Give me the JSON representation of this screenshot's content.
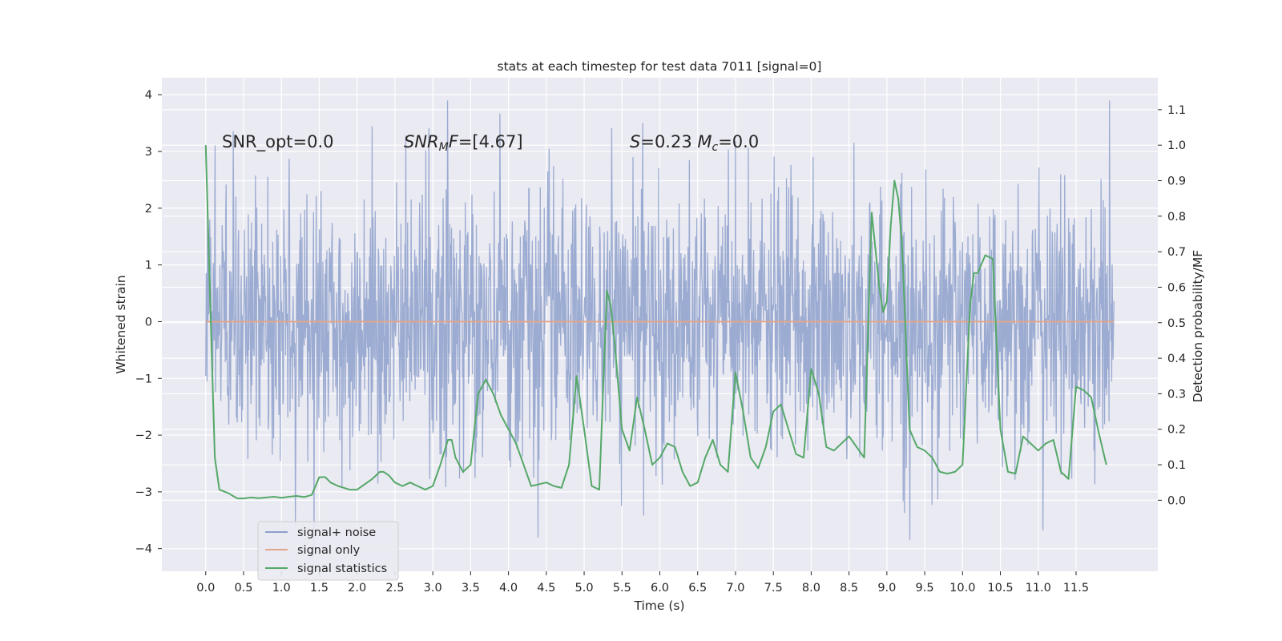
{
  "chart_data": {
    "type": "line",
    "title": "stats at each timestep for test data 7011 [signal=0]",
    "xlabel": "Time (s)",
    "ylabel": "Whitened strain",
    "y2label": "Detection probability/MF",
    "xlim": [
      -0.58,
      12.58
    ],
    "ylim": [
      -4.4,
      4.3
    ],
    "y2lim": [
      -0.2,
      1.19
    ],
    "x_ticks": [
      0.0,
      0.5,
      1.0,
      1.5,
      2.0,
      2.5,
      3.0,
      3.5,
      4.0,
      4.5,
      5.0,
      5.5,
      6.0,
      6.5,
      7.0,
      7.5,
      8.0,
      8.5,
      9.0,
      9.5,
      10.0,
      10.5,
      11.0,
      11.5
    ],
    "x_tick_labels": [
      "0.0",
      "0.5",
      "1.0",
      "1.5",
      "2.0",
      "2.5",
      "3.0",
      "3.5",
      "4.0",
      "4.5",
      "5.0",
      "5.5",
      "6.0",
      "6.5",
      "7.0",
      "7.5",
      "8.0",
      "8.5",
      "9.0",
      "9.5",
      "10.0",
      "10.5",
      "11.0",
      "11.5"
    ],
    "y_ticks": [
      -4,
      -3,
      -2,
      -1,
      0,
      1,
      2,
      3,
      4
    ],
    "y_tick_labels": [
      "−4",
      "−3",
      "−2",
      "−1",
      "0",
      "1",
      "2",
      "3",
      "4"
    ],
    "y2_ticks": [
      0.0,
      0.1,
      0.2,
      0.3,
      0.4,
      0.5,
      0.6,
      0.7,
      0.8,
      0.9,
      1.0,
      1.1
    ],
    "y2_tick_labels": [
      "0.0",
      "0.1",
      "0.2",
      "0.3",
      "0.4",
      "0.5",
      "0.6",
      "0.7",
      "0.8",
      "0.9",
      "1.0",
      "1.1"
    ],
    "grid": true,
    "legend_position": "lower-left",
    "annotations": [
      {
        "text": "SNR_opt=0.0",
        "x": 0.2,
        "y": 3.0
      },
      {
        "text": "SNR_MF=[4.67]",
        "x": 2.6,
        "y": 3.0
      },
      {
        "text": "S=0.23   M_c=0.0",
        "x": 5.6,
        "y": 3.0
      }
    ],
    "series": [
      {
        "name": "signal+ noise",
        "kind": "noise",
        "color": "#8da0cb",
        "axis": "left",
        "x_range": [
          0.0,
          12.0
        ],
        "samples": 2048,
        "typical_envelope": 1.2,
        "extreme_max": 3.9,
        "extreme_min": -4.05
      },
      {
        "name": "signal only",
        "color": "#e1a58c",
        "axis": "left",
        "x": [
          0.0,
          12.0
        ],
        "values": [
          0.0,
          0.0
        ]
      },
      {
        "name": "signal statistics",
        "color": "#55a868",
        "axis": "right",
        "x": [
          0.0,
          0.06,
          0.12,
          0.18,
          0.24,
          0.3,
          0.36,
          0.42,
          0.5,
          0.6,
          0.7,
          0.8,
          0.9,
          1.0,
          1.1,
          1.2,
          1.3,
          1.4,
          1.5,
          1.58,
          1.65,
          1.75,
          1.9,
          2.0,
          2.1,
          2.2,
          2.3,
          2.35,
          2.42,
          2.5,
          2.6,
          2.7,
          2.8,
          2.9,
          3.0,
          3.1,
          3.2,
          3.25,
          3.3,
          3.4,
          3.5,
          3.6,
          3.7,
          3.8,
          3.9,
          4.0,
          4.1,
          4.2,
          4.3,
          4.4,
          4.5,
          4.6,
          4.7,
          4.8,
          4.9,
          5.0,
          5.1,
          5.2,
          5.3,
          5.35,
          5.4,
          5.5,
          5.6,
          5.7,
          5.8,
          5.9,
          6.0,
          6.1,
          6.2,
          6.3,
          6.4,
          6.5,
          6.6,
          6.7,
          6.8,
          6.9,
          7.0,
          7.1,
          7.2,
          7.3,
          7.4,
          7.5,
          7.6,
          7.7,
          7.8,
          7.9,
          8.0,
          8.1,
          8.2,
          8.3,
          8.4,
          8.5,
          8.6,
          8.7,
          8.8,
          8.9,
          8.95,
          9.0,
          9.05,
          9.1,
          9.15,
          9.2,
          9.3,
          9.4,
          9.5,
          9.6,
          9.7,
          9.8,
          9.9,
          10.0,
          10.1,
          10.15,
          10.2,
          10.3,
          10.4,
          10.5,
          10.6,
          10.7,
          10.8,
          10.9,
          11.0,
          11.1,
          11.2,
          11.3,
          11.4,
          11.5,
          11.6,
          11.7,
          11.8,
          11.9
        ],
        "values": [
          1.0,
          0.55,
          0.12,
          0.03,
          0.025,
          0.02,
          0.012,
          0.005,
          0.005,
          0.008,
          0.006,
          0.008,
          0.01,
          0.007,
          0.01,
          0.012,
          0.009,
          0.015,
          0.065,
          0.065,
          0.05,
          0.04,
          0.03,
          0.03,
          0.045,
          0.06,
          0.08,
          0.08,
          0.07,
          0.05,
          0.04,
          0.05,
          0.04,
          0.03,
          0.04,
          0.1,
          0.17,
          0.17,
          0.12,
          0.08,
          0.1,
          0.3,
          0.34,
          0.3,
          0.24,
          0.2,
          0.16,
          0.1,
          0.04,
          0.045,
          0.05,
          0.04,
          0.035,
          0.1,
          0.35,
          0.2,
          0.04,
          0.03,
          0.59,
          0.55,
          0.45,
          0.2,
          0.14,
          0.29,
          0.2,
          0.1,
          0.12,
          0.16,
          0.15,
          0.08,
          0.04,
          0.05,
          0.12,
          0.17,
          0.1,
          0.08,
          0.36,
          0.25,
          0.12,
          0.09,
          0.15,
          0.25,
          0.27,
          0.2,
          0.13,
          0.12,
          0.37,
          0.3,
          0.15,
          0.14,
          0.16,
          0.18,
          0.15,
          0.12,
          0.81,
          0.6,
          0.53,
          0.56,
          0.77,
          0.9,
          0.85,
          0.72,
          0.2,
          0.15,
          0.14,
          0.12,
          0.08,
          0.075,
          0.08,
          0.1,
          0.55,
          0.64,
          0.64,
          0.69,
          0.68,
          0.2,
          0.08,
          0.075,
          0.18,
          0.16,
          0.14,
          0.16,
          0.17,
          0.08,
          0.06,
          0.32,
          0.31,
          0.29,
          0.19,
          0.1
        ]
      }
    ]
  }
}
